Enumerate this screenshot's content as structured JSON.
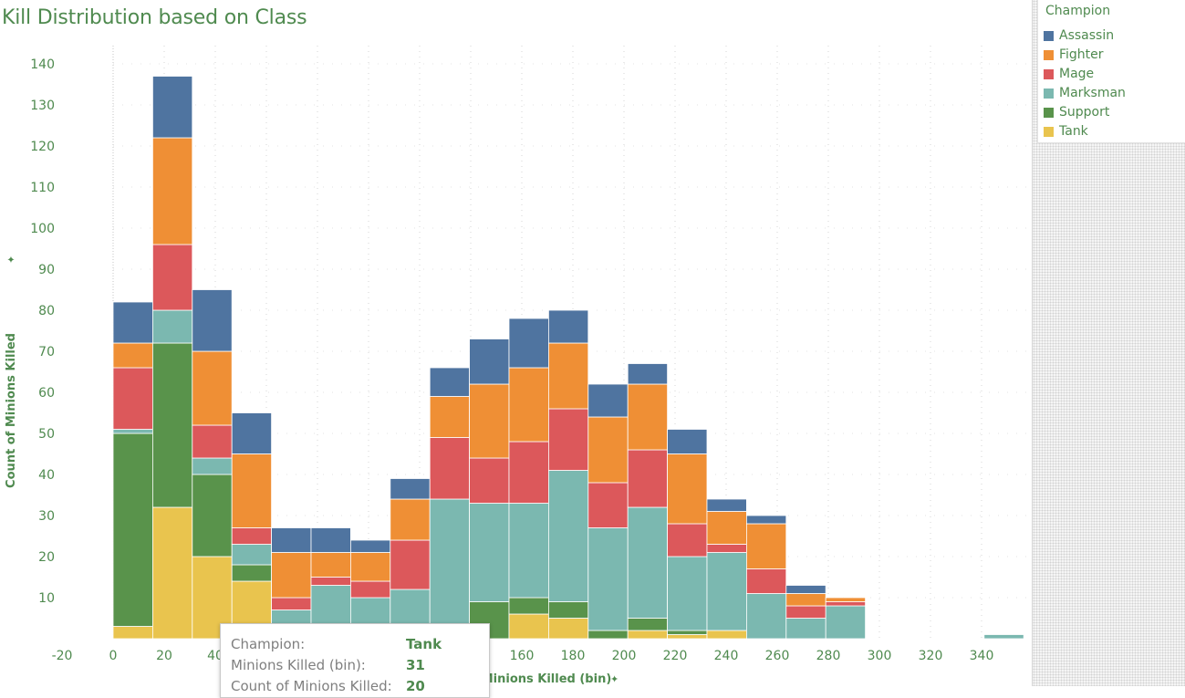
{
  "chart_data": {
    "type": "bar",
    "stacked": true,
    "title": "Kill Distribution based on Class",
    "xlabel": "Minions Killed (bin)",
    "ylabel": "Count of Minions Killed",
    "x_ticks": [
      -20,
      0,
      20,
      40,
      60,
      80,
      100,
      120,
      140,
      160,
      180,
      200,
      220,
      240,
      260,
      280,
      300,
      320,
      340
    ],
    "y_ticks": [
      10,
      20,
      30,
      40,
      50,
      60,
      70,
      80,
      90,
      100,
      110,
      120,
      130,
      140
    ],
    "xlim": [
      -20,
      356
    ],
    "ylim": [
      0,
      144
    ],
    "grid": true,
    "legend_position": "top-right",
    "bin_width": 15.5,
    "bins": [
      0,
      15.5,
      31,
      46.5,
      62,
      77.5,
      93,
      108.5,
      124,
      139.5,
      155,
      170.5,
      186,
      201.5,
      217,
      232.5,
      248,
      263.5,
      279,
      341
    ],
    "series": [
      {
        "name": "Tank",
        "color": "#e9c44e",
        "values": [
          3,
          32,
          20,
          14,
          0,
          0,
          0,
          0,
          0,
          0,
          6,
          5,
          0,
          2,
          1,
          2,
          0,
          0,
          0,
          0
        ]
      },
      {
        "name": "Support",
        "color": "#59934b",
        "values": [
          47,
          40,
          20,
          4,
          0,
          0,
          0,
          0,
          0,
          9,
          4,
          4,
          2,
          3,
          1,
          0,
          0,
          0,
          0,
          0
        ]
      },
      {
        "name": "Marksman",
        "color": "#7bb8b0",
        "values": [
          1,
          8,
          4,
          5,
          7,
          13,
          10,
          12,
          34,
          24,
          23,
          32,
          25,
          27,
          18,
          19,
          11,
          5,
          8,
          1
        ]
      },
      {
        "name": "Mage",
        "color": "#dc585b",
        "values": [
          15,
          16,
          8,
          4,
          3,
          2,
          4,
          12,
          15,
          11,
          15,
          15,
          11,
          14,
          8,
          2,
          6,
          3,
          1,
          0
        ]
      },
      {
        "name": "Fighter",
        "color": "#ef8f35",
        "values": [
          6,
          26,
          18,
          18,
          11,
          6,
          7,
          10,
          10,
          18,
          18,
          16,
          16,
          16,
          17,
          8,
          11,
          3,
          1,
          0
        ]
      },
      {
        "name": "Assassin",
        "color": "#4f74a0",
        "values": [
          10,
          15,
          15,
          10,
          6,
          6,
          3,
          5,
          7,
          11,
          12,
          8,
          8,
          5,
          6,
          3,
          2,
          2,
          0,
          0
        ]
      }
    ]
  },
  "legend": {
    "title": "Champion",
    "items": [
      {
        "label": "Assassin",
        "color": "#4f74a0"
      },
      {
        "label": "Fighter",
        "color": "#ef8f35"
      },
      {
        "label": "Mage",
        "color": "#dc585b"
      },
      {
        "label": "Marksman",
        "color": "#7bb8b0"
      },
      {
        "label": "Support",
        "color": "#59934b"
      },
      {
        "label": "Tank",
        "color": "#e9c44e"
      }
    ]
  },
  "tooltip": {
    "rows": [
      {
        "key": "Champion:",
        "value": "Tank"
      },
      {
        "key": "Minions Killed (bin):",
        "value": "31"
      },
      {
        "key": "Count of Minions Killed:",
        "value": "20"
      }
    ]
  },
  "icons": {
    "axis_pin": "pin-icon"
  }
}
